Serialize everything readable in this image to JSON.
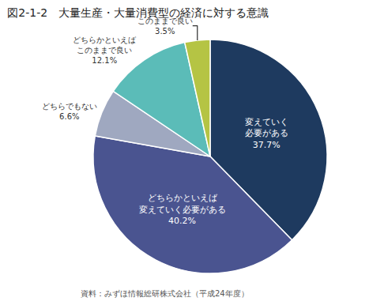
{
  "chart_data": {
    "type": "pie",
    "title": "図2-1-2　大量生産・大量消費型の経済に対する意識",
    "categories": [
      "変えていく\n必要がある",
      "どちらかといえば\n変えていく必要がある",
      "どちらでもない",
      "どちらかといえば\nこのままで良い",
      "このままで良い"
    ],
    "values": [
      37.7,
      40.2,
      6.6,
      12.1,
      3.5
    ],
    "value_labels": [
      "37.7%",
      "40.2%",
      "6.6%",
      "12.1%",
      "3.5%"
    ],
    "colors": [
      "#1e3a5f",
      "#4a5490",
      "#9fa8c0",
      "#5bbcb8",
      "#b5c444"
    ],
    "data_labels": true,
    "annotations": [
      "資料：みずほ情報総研株式会社（平成24年度）"
    ]
  }
}
